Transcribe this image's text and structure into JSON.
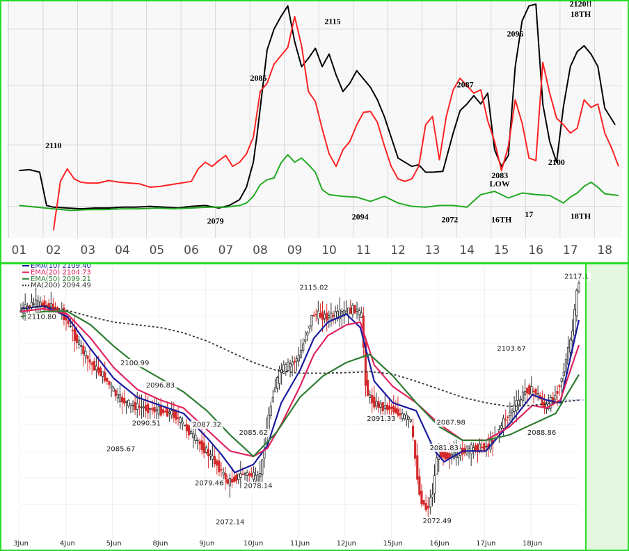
{
  "chart_data": [
    {
      "type": "line",
      "title": "",
      "x_tick_labels": [
        "01",
        "02",
        "03",
        "04",
        "05",
        "06",
        "07",
        "08",
        "09",
        "10",
        "11",
        "12",
        "13",
        "14",
        "15",
        "16",
        "17",
        "18"
      ],
      "series": [
        {
          "color": "#000000",
          "x": [
            1.0,
            1.3,
            1.6,
            1.8,
            2.0,
            2.4,
            2.8,
            3.2,
            3.6,
            4.0,
            4.4,
            4.8,
            5.2,
            5.6,
            6.0,
            6.4,
            6.8,
            7.1,
            7.4,
            7.6,
            7.8,
            7.9,
            8.0,
            8.1,
            8.2,
            8.4,
            8.6,
            8.8,
            9.0,
            9.2,
            9.4,
            9.6,
            9.8,
            10.0,
            10.2,
            10.4,
            10.6,
            10.8,
            11.0,
            11.2,
            11.4,
            11.6,
            11.8,
            12.0,
            12.2,
            12.4,
            12.6,
            12.8,
            13.0,
            13.3,
            13.6,
            13.8,
            14.0,
            14.2,
            14.4,
            14.6,
            14.8,
            15.0,
            15.2,
            15.4,
            15.6,
            15.8,
            16.0,
            16.2,
            16.4,
            16.6,
            16.8,
            17.0,
            17.2,
            17.4,
            17.6,
            17.8,
            18.0,
            18.3
          ],
          "y": [
            2100.5,
            2100.6,
            2100.3,
            2096.3,
            2096.1,
            2096.0,
            2095.9,
            2096.0,
            2096.0,
            2096.1,
            2096.1,
            2096.2,
            2096.1,
            2096.0,
            2096.2,
            2096.3,
            2096.0,
            2096.3,
            2097.0,
            2098.5,
            2101.5,
            2104.5,
            2108.0,
            2111.5,
            2115.0,
            2117.5,
            2119.0,
            2120.3,
            2116.0,
            2113.0,
            2114.0,
            2115.2,
            2113.0,
            2114.5,
            2112.0,
            2110.0,
            2111.0,
            2112.5,
            2111.5,
            2110.5,
            2109.0,
            2107.0,
            2104.5,
            2102.0,
            2101.5,
            2101.0,
            2101.2,
            2100.3,
            2100.3,
            2100.4,
            2105.0,
            2107.7,
            2108.5,
            2109.5,
            2108.5,
            2109.8,
            2103.0,
            2101.0,
            2102.3,
            2113.0,
            2118.5,
            2120.3,
            2120.5,
            2108.5,
            2104.0,
            2101.5,
            2108.2,
            2113.0,
            2114.8,
            2115.5,
            2114.5,
            2113.0,
            2108.0,
            2106.0
          ]
        },
        {
          "color": "#ff2222",
          "x": [
            2.0,
            2.05,
            2.1,
            2.2,
            2.4,
            2.6,
            2.8,
            3.0,
            3.3,
            3.6,
            3.9,
            4.2,
            4.5,
            4.8,
            5.1,
            5.4,
            5.7,
            6.0,
            6.2,
            6.4,
            6.6,
            6.8,
            7.0,
            7.2,
            7.4,
            7.6,
            7.8,
            8.0,
            8.2,
            8.4,
            8.6,
            8.8,
            9.0,
            9.2,
            9.4,
            9.6,
            9.8,
            10.0,
            10.2,
            10.4,
            10.6,
            10.8,
            11.0,
            11.2,
            11.4,
            11.6,
            11.8,
            12.0,
            12.2,
            12.4,
            12.6,
            12.8,
            13.0,
            13.2,
            13.4,
            13.6,
            13.8,
            14.0,
            14.2,
            14.4,
            14.6,
            14.8,
            15.0,
            15.2,
            15.4,
            15.6,
            15.8,
            16.0,
            16.2,
            16.4,
            16.6,
            16.8,
            17.0,
            17.2,
            17.4,
            17.6,
            17.8,
            18.0,
            18.2,
            18.4
          ],
          "y": [
            2093.3,
            2094.8,
            2096.2,
            2099.2,
            2100.7,
            2099.5,
            2099.1,
            2099.0,
            2099.0,
            2099.3,
            2099.1,
            2099.0,
            2098.9,
            2098.5,
            2098.6,
            2098.8,
            2099.0,
            2099.2,
            2100.7,
            2101.5,
            2101.0,
            2101.7,
            2102.3,
            2101.0,
            2101.5,
            2102.5,
            2104.5,
            2110.0,
            2111.0,
            2113.3,
            2114.3,
            2115.3,
            2119.0,
            2115.5,
            2110.0,
            2108.8,
            2105.5,
            2102.5,
            2101.0,
            2103.0,
            2104.0,
            2106.0,
            2107.5,
            2107.6,
            2106.3,
            2103.5,
            2101.0,
            2099.5,
            2099.2,
            2099.5,
            2101.0,
            2106.0,
            2107.0,
            2101.8,
            2107.0,
            2110.2,
            2111.6,
            2110.7,
            2109.8,
            2110.2,
            2106.5,
            2104.0,
            2100.5,
            2103.4,
            2109.0,
            2106.2,
            2102.0,
            2101.7,
            2113.5,
            2109.8,
            2106.8,
            2106.0,
            2105.0,
            2105.6,
            2109.0,
            2108.1,
            2108.5,
            2105.0,
            2103.2,
            2101.0
          ]
        },
        {
          "color": "#22aa22",
          "x": [
            1.0,
            1.5,
            2.0,
            2.5,
            3.0,
            3.5,
            4.0,
            4.5,
            5.0,
            5.5,
            6.0,
            6.5,
            7.0,
            7.4,
            7.6,
            7.8,
            8.0,
            8.2,
            8.4,
            8.6,
            8.8,
            9.0,
            9.2,
            9.4,
            9.6,
            9.8,
            10.0,
            10.4,
            10.8,
            11.2,
            11.6,
            12.0,
            12.4,
            12.8,
            13.2,
            13.6,
            14.0,
            14.4,
            14.8,
            15.2,
            15.6,
            16.0,
            16.4,
            16.8,
            17.0,
            17.2,
            17.4,
            17.6,
            17.8,
            18.0,
            18.4
          ],
          "y": [
            2096.3,
            2096.1,
            2095.9,
            2095.7,
            2095.8,
            2095.8,
            2095.9,
            2095.9,
            2096.0,
            2095.9,
            2096.0,
            2096.1,
            2096.1,
            2096.3,
            2096.6,
            2097.4,
            2098.8,
            2099.4,
            2099.6,
            2101.4,
            2102.4,
            2101.5,
            2102.0,
            2101.2,
            2100.3,
            2098.2,
            2097.6,
            2097.4,
            2097.3,
            2096.8,
            2097.4,
            2096.6,
            2096.2,
            2096.1,
            2096.3,
            2096.3,
            2096.1,
            2097.6,
            2098.0,
            2097.2,
            2097.8,
            2097.6,
            2097.5,
            2096.6,
            2097.3,
            2097.8,
            2098.6,
            2099.1,
            2098.5,
            2097.7,
            2097.5
          ]
        }
      ],
      "annotations": [
        {
          "text": "2110",
          "x": 2.0,
          "y": 2103.2
        },
        {
          "text": "2085",
          "x": 7.95,
          "y": 2111.3
        },
        {
          "text": "2115",
          "x": 10.1,
          "y": 2118.1
        },
        {
          "text": "2087",
          "x": 13.95,
          "y": 2110.5
        },
        {
          "text": "2096",
          "x": 15.4,
          "y": 2116.6
        },
        {
          "text": "2120!!",
          "x": 17.3,
          "y": 2120.2
        },
        {
          "text": "18TH",
          "x": 17.3,
          "y": 2119.0
        },
        {
          "text": "2100",
          "x": 16.6,
          "y": 2101.2
        },
        {
          "text": "2083",
          "x": 14.95,
          "y": 2099.6
        },
        {
          "text": "LOW",
          "x": 14.95,
          "y": 2098.6
        },
        {
          "text": "2079",
          "x": 6.7,
          "y": 2094.1
        },
        {
          "text": "2094",
          "x": 10.9,
          "y": 2094.6
        },
        {
          "text": "2072",
          "x": 13.5,
          "y": 2094.3
        },
        {
          "text": "16TH",
          "x": 15.0,
          "y": 2094.3
        },
        {
          "text": "17",
          "x": 15.8,
          "y": 2094.9
        },
        {
          "text": "18TH",
          "x": 17.3,
          "y": 2094.7
        }
      ],
      "grid": true,
      "legend": "none"
    },
    {
      "type": "candlestick",
      "title": "",
      "legend": [
        {
          "label": "EMA(10) 2109.40",
          "color": "#1a1aa0"
        },
        {
          "label": "EMA(20) 2104.73",
          "color": "#e0245e"
        },
        {
          "label": "EMA(50) 2099.21",
          "color": "#2e7d32"
        },
        {
          "label": "MA(200) 2094.49",
          "color": "#333333"
        }
      ],
      "x_tick_labels": [
        "3Jun",
        "4Jun",
        "5Jun",
        "8Jun",
        "9Jun",
        "10Jun",
        "11Jun",
        "12Jun",
        "15Jun",
        "16Jun",
        "17Jun",
        "18Jun"
      ],
      "price_labels": [
        {
          "text": "2117.1",
          "x": 11.95,
          "y": 2117.1
        },
        {
          "text": "2115.02",
          "x": 6.3,
          "y": 2115.02
        },
        {
          "text": "2110.80",
          "x": 0.45,
          "y": 2109.6
        },
        {
          "text": "2103.67",
          "x": 10.55,
          "y": 2103.67
        },
        {
          "text": "2100.99",
          "x": 2.45,
          "y": 2100.99
        },
        {
          "text": "2096.83",
          "x": 3.0,
          "y": 2096.83
        },
        {
          "text": "2091.33",
          "x": 7.75,
          "y": 2090.6
        },
        {
          "text": "2090.51",
          "x": 2.7,
          "y": 2089.8
        },
        {
          "text": "2087.98",
          "x": 9.25,
          "y": 2089.9
        },
        {
          "text": "2087.32",
          "x": 4.0,
          "y": 2089.5
        },
        {
          "text": "2088.86",
          "x": 11.2,
          "y": 2088.0
        },
        {
          "text": "2085.62",
          "x": 5.0,
          "y": 2088.0
        },
        {
          "text": "2085.67",
          "x": 2.15,
          "y": 2085.0
        },
        {
          "text": "2081.83",
          "x": 9.1,
          "y": 2085.2
        },
        {
          "text": "2079.46",
          "x": 4.05,
          "y": 2078.6
        },
        {
          "text": "2078.14",
          "x": 5.1,
          "y": 2078.1
        },
        {
          "text": "2072.49",
          "x": 8.95,
          "y": 2071.6
        },
        {
          "text": "2072.14",
          "x": 4.5,
          "y": 2071.4
        }
      ],
      "ohlc_path": {
        "x": [
          0.0,
          0.3,
          0.6,
          0.9,
          1.2,
          1.5,
          1.8,
          2.1,
          2.4,
          2.7,
          3.0,
          3.3,
          3.6,
          3.9,
          4.2,
          4.35,
          4.45,
          4.6,
          4.8,
          5.0,
          5.1,
          5.2,
          5.3,
          5.45,
          5.6,
          5.8,
          6.0,
          6.3,
          6.6,
          6.9,
          7.2,
          7.35,
          7.45,
          7.6,
          7.8,
          8.0,
          8.2,
          8.4,
          8.6,
          8.75,
          8.9,
          8.95,
          9.05,
          9.2,
          9.5,
          9.8,
          10.1,
          10.4,
          10.7,
          10.9,
          11.1,
          11.3,
          11.5,
          11.7,
          11.9,
          12.0
        ],
        "y": [
          2111.0,
          2112.5,
          2112.0,
          2111.0,
          2106.0,
          2101.5,
          2099.0,
          2095.0,
          2093.5,
          2093.0,
          2092.5,
          2092.0,
          2089.0,
          2086.0,
          2083.0,
          2081.0,
          2079.0,
          2079.8,
          2080.8,
          2080.5,
          2079.4,
          2082.0,
          2089.0,
          2096.0,
          2100.0,
          2101.0,
          2102.5,
          2110.5,
          2110.0,
          2110.5,
          2111.5,
          2110.0,
          2096.0,
          2094.0,
          2093.2,
          2093.0,
          2091.5,
          2091.0,
          2076.5,
          2074.0,
          2078.0,
          2084.0,
          2084.5,
          2084.0,
          2085.0,
          2085.5,
          2086.0,
          2090.5,
          2094.0,
          2096.5,
          2096.0,
          2093.0,
          2095.0,
          2100.0,
          2108.0,
          2116.5
        ]
      },
      "series": [
        {
          "name": "EMA(10) 2109.40",
          "color": "#1a1aa0",
          "x": [
            0.0,
            0.5,
            1.0,
            1.5,
            2.0,
            2.5,
            3.0,
            3.5,
            4.0,
            4.3,
            4.6,
            5.0,
            5.3,
            5.6,
            6.0,
            6.3,
            6.6,
            7.0,
            7.3,
            7.6,
            8.0,
            8.5,
            8.9,
            9.1,
            9.5,
            10.0,
            10.5,
            11.0,
            11.3,
            11.6,
            12.0
          ],
          "y": [
            2111.5,
            2112.0,
            2110.0,
            2104.0,
            2098.5,
            2095.0,
            2093.5,
            2092.0,
            2087.5,
            2084.5,
            2081.0,
            2082.5,
            2086.0,
            2094.0,
            2100.0,
            2106.0,
            2109.0,
            2110.5,
            2108.0,
            2098.0,
            2094.0,
            2092.5,
            2085.0,
            2083.0,
            2085.0,
            2085.0,
            2090.0,
            2095.5,
            2094.5,
            2094.0,
            2109.4
          ]
        },
        {
          "name": "EMA(20) 2104.73",
          "color": "#e0245e",
          "x": [
            0.0,
            0.5,
            1.0,
            1.5,
            2.0,
            2.5,
            3.0,
            3.5,
            4.0,
            4.5,
            5.0,
            5.3,
            5.6,
            6.0,
            6.3,
            6.6,
            7.0,
            7.3,
            7.6,
            8.0,
            8.5,
            9.0,
            9.5,
            10.0,
            10.5,
            11.0,
            11.3,
            11.6,
            12.0
          ],
          "y": [
            2111.0,
            2111.5,
            2110.5,
            2106.0,
            2100.5,
            2096.5,
            2094.5,
            2093.0,
            2089.0,
            2085.0,
            2084.0,
            2085.5,
            2090.0,
            2097.0,
            2103.0,
            2106.5,
            2108.5,
            2109.0,
            2101.0,
            2097.0,
            2094.0,
            2090.0,
            2087.0,
            2087.0,
            2089.5,
            2093.5,
            2093.0,
            2094.5,
            2104.73
          ]
        },
        {
          "name": "EMA(50) 2099.21",
          "color": "#2e7d32",
          "x": [
            0.0,
            0.5,
            1.0,
            1.5,
            2.0,
            2.5,
            3.0,
            3.5,
            4.0,
            4.5,
            5.0,
            5.5,
            6.0,
            6.5,
            7.0,
            7.5,
            8.0,
            8.5,
            9.0,
            9.5,
            10.0,
            10.5,
            11.0,
            11.5,
            12.0
          ],
          "y": [
            2110.0,
            2111.0,
            2111.0,
            2108.5,
            2104.5,
            2101.0,
            2098.5,
            2096.0,
            2092.5,
            2088.0,
            2084.0,
            2088.5,
            2095.0,
            2099.0,
            2101.5,
            2103.0,
            2099.0,
            2094.0,
            2089.5,
            2087.0,
            2087.0,
            2088.0,
            2090.0,
            2092.0,
            2099.21
          ]
        },
        {
          "name": "MA(200) 2094.49",
          "color": "#333333",
          "dashed": true,
          "x": [
            0.0,
            0.5,
            1.0,
            1.5,
            2.0,
            2.5,
            3.0,
            3.5,
            4.0,
            4.5,
            5.0,
            5.5,
            6.0,
            6.5,
            7.0,
            7.5,
            8.0,
            8.5,
            9.0,
            9.5,
            10.0,
            10.5,
            11.0,
            11.5,
            12.0
          ],
          "y": [
            2111.5,
            2112.0,
            2111.2,
            2110.0,
            2109.0,
            2108.5,
            2108.0,
            2107.0,
            2105.5,
            2103.5,
            2101.5,
            2100.0,
            2099.5,
            2099.5,
            2099.6,
            2099.8,
            2099.3,
            2098.0,
            2096.5,
            2095.0,
            2094.0,
            2093.3,
            2093.5,
            2094.0,
            2094.49
          ]
        }
      ],
      "grid": true
    }
  ]
}
